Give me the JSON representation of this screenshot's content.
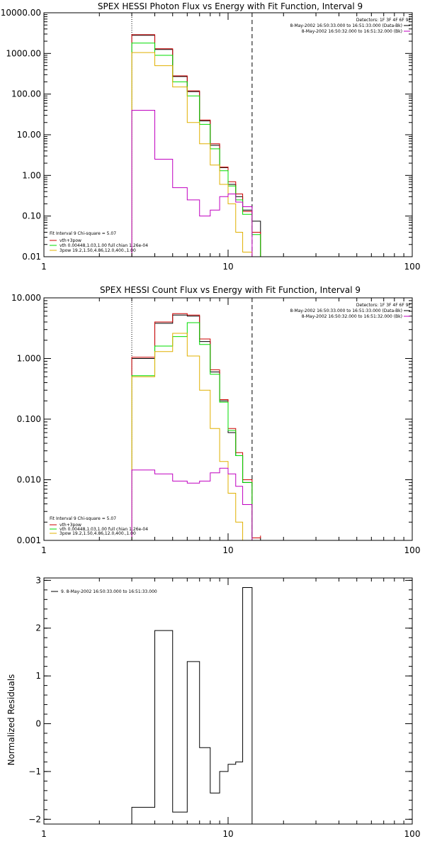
{
  "chart_data": [
    {
      "type": "line",
      "title": "SPEX HESSI Photon Flux vs Energy with Fit Function, Interval 9",
      "xlabel": "",
      "ylabel": "",
      "xscale": "log",
      "yscale": "log",
      "xlim": [
        1,
        100
      ],
      "ylim": [
        0.01,
        10000
      ],
      "x_ticks": [
        1,
        10,
        100
      ],
      "x_tick_labels": [
        "1",
        "10",
        "100"
      ],
      "y_ticks": [
        0.01,
        0.1,
        1,
        10,
        100,
        1000,
        10000
      ],
      "y_tick_labels": [
        "0.01",
        "0.10",
        "1.00",
        "10.00",
        "100.00",
        "1000.00",
        "10000.00"
      ],
      "vlines": [
        {
          "x": 3,
          "style": "dotted"
        },
        {
          "x": 13.5,
          "style": "dashed"
        }
      ],
      "legend_header": "Detectors: 1F 3F 4F 6F 9F",
      "legend_entries": [
        {
          "label": "8-May-2002 16:50:33.000 to 16:51:33.000 (Data-Bk)",
          "color": "#000000"
        },
        {
          "label": "8-May-2002 16:50:32.000 to 16:51:32.000 (Bk)",
          "color": "#c000c0"
        }
      ],
      "fit_legend_header": "Fit Interval 9   Chi-square = 5.07",
      "fit_legend_entries": [
        {
          "label": "vth+3pow",
          "color": "#cc0000"
        },
        {
          "label": "vth 0.00448,1.03,1.00  full chian 1.26e-04",
          "color": "#00dd00"
        },
        {
          "label": "3pow 19.2,1.50,4.86,12.0,400.,1.00",
          "color": "#e0b000"
        }
      ],
      "x_edges": [
        3.0,
        4.0,
        5.0,
        6.0,
        7.0,
        8.0,
        9.0,
        10.0,
        11.0,
        12.0,
        13.5,
        15.0
      ],
      "series": [
        {
          "color": "#000000",
          "values": [
            2800,
            1250,
            270,
            115,
            22,
            5.5,
            1.55,
            0.6,
            0.3,
            0.14,
            0.075,
            0.01
          ]
        },
        {
          "color": "#cc0000",
          "values": [
            2900,
            1300,
            280,
            120,
            23,
            6.0,
            1.6,
            0.7,
            0.35,
            0.13,
            0.04,
            0.0
          ]
        },
        {
          "color": "#00dd00",
          "values": [
            1800,
            900,
            200,
            90,
            18,
            4.5,
            1.3,
            0.55,
            0.25,
            0.11,
            0.035,
            0.0
          ]
        },
        {
          "color": "#e0b000",
          "values": [
            1050,
            500,
            150,
            20,
            6,
            1.8,
            0.6,
            0.2,
            0.04,
            0.013,
            0.0,
            0.0
          ]
        },
        {
          "color": "#c000c0",
          "values": [
            40,
            2.5,
            0.5,
            0.25,
            0.1,
            0.14,
            0.3,
            0.35,
            0.22,
            0.17,
            0.0,
            0.0
          ]
        }
      ]
    },
    {
      "type": "line",
      "title": "SPEX HESSI Count Flux vs Energy with Fit Function, Interval 9",
      "xlabel": "",
      "ylabel": "",
      "xscale": "log",
      "yscale": "log",
      "xlim": [
        1,
        100
      ],
      "ylim": [
        0.001,
        10
      ],
      "x_ticks": [
        1,
        10,
        100
      ],
      "x_tick_labels": [
        "1",
        "10",
        "100"
      ],
      "y_ticks": [
        0.001,
        0.01,
        0.1,
        1,
        10
      ],
      "y_tick_labels": [
        "0.001",
        "0.010",
        "0.100",
        "1.000",
        "10.000"
      ],
      "vlines": [
        {
          "x": 3,
          "style": "dotted"
        },
        {
          "x": 13.5,
          "style": "dashed"
        }
      ],
      "legend_header": "Detectors: 1F 3F 4F 6F 9F",
      "legend_entries": [
        {
          "label": "8-May-2002 16:50:33.000 to 16:51:33.000 (Data-Bk)",
          "color": "#000000"
        },
        {
          "label": "8-May-2002 16:50:32.000 to 16:51:32.000 (Bk)",
          "color": "#c000c0"
        }
      ],
      "fit_legend_header": "Fit Interval 9   Chi-square = 5.07",
      "fit_legend_entries": [
        {
          "label": "vth+3pow",
          "color": "#cc0000"
        },
        {
          "label": "vth 0.00448,1.03,1.00  full chian 1.26e-04",
          "color": "#00dd00"
        },
        {
          "label": "3pow 19.2,1.50,4.86,12.0,400.,1.00",
          "color": "#e0b000"
        }
      ],
      "x_edges": [
        3.0,
        4.0,
        5.0,
        6.0,
        7.0,
        8.0,
        9.0,
        10.0,
        11.0,
        12.0,
        13.5,
        15.0
      ],
      "series": [
        {
          "color": "#000000",
          "values": [
            1.0,
            3.8,
            5.2,
            5.0,
            1.9,
            0.6,
            0.2,
            0.06,
            0.025,
            0.009,
            0.0011,
            0.0
          ]
        },
        {
          "color": "#cc0000",
          "values": [
            1.05,
            4.0,
            5.5,
            5.2,
            2.1,
            0.65,
            0.21,
            0.07,
            0.028,
            0.01,
            0.0011,
            0.0012
          ]
        },
        {
          "color": "#00dd00",
          "values": [
            0.52,
            1.6,
            2.3,
            3.9,
            1.7,
            0.55,
            0.19,
            0.065,
            0.025,
            0.009,
            0.0009,
            0.0006
          ]
        },
        {
          "color": "#e0b000",
          "values": [
            0.5,
            1.3,
            2.6,
            1.1,
            0.3,
            0.07,
            0.02,
            0.006,
            0.002,
            0.0007,
            0.0,
            0.0
          ]
        },
        {
          "color": "#c000c0",
          "values": [
            0.0145,
            0.0125,
            0.0095,
            0.0088,
            0.0095,
            0.013,
            0.0155,
            0.0125,
            0.0078,
            0.0039,
            0.0,
            0.0
          ]
        }
      ]
    },
    {
      "type": "line",
      "title": "",
      "xlabel": "",
      "ylabel": "Normalized Residuals",
      "xscale": "log",
      "yscale": "linear",
      "xlim": [
        1,
        100
      ],
      "ylim": [
        -2.1,
        3.05
      ],
      "x_ticks": [
        1,
        10,
        100
      ],
      "x_tick_labels": [
        "1",
        "10",
        "100"
      ],
      "y_ticks": [
        -2,
        -1,
        0,
        1,
        2,
        3
      ],
      "y_tick_labels": [
        "−2",
        "−1",
        "0",
        "1",
        "2",
        "3"
      ],
      "legend_entries": [
        {
          "label": "9. 8-May-2002 16:50:33.000 to 16:51:33.000",
          "color": "#000000"
        }
      ],
      "x_edges": [
        3.0,
        4.0,
        5.0,
        6.0,
        7.0,
        8.0,
        9.0,
        10.0,
        11.0,
        12.0,
        13.5
      ],
      "series": [
        {
          "color": "#000000",
          "values": [
            -1.75,
            1.95,
            -1.85,
            1.3,
            -0.5,
            -1.45,
            -1.0,
            -0.85,
            -0.8,
            2.85
          ]
        }
      ]
    }
  ]
}
